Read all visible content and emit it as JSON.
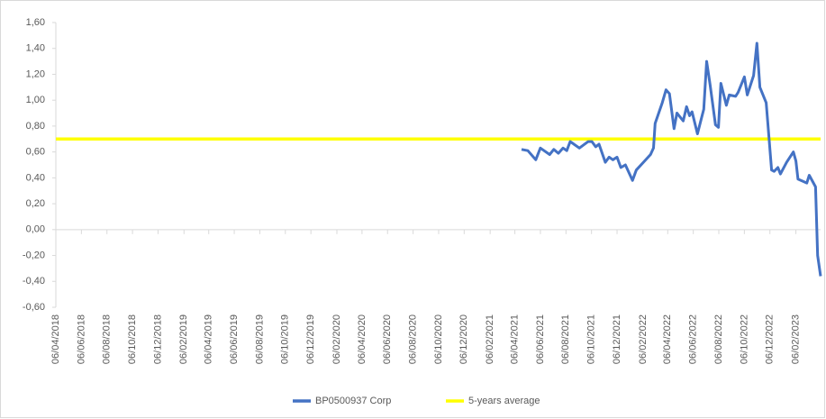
{
  "chart_data": {
    "type": "line",
    "xlim": [
      "06/04/2018",
      "06/04/2023"
    ],
    "xticks": [
      "06/04/2018",
      "06/06/2018",
      "06/08/2018",
      "06/10/2018",
      "06/12/2018",
      "06/02/2019",
      "06/04/2019",
      "06/06/2019",
      "06/08/2019",
      "06/10/2019",
      "06/12/2019",
      "06/02/2020",
      "06/04/2020",
      "06/06/2020",
      "06/08/2020",
      "06/10/2020",
      "06/12/2020",
      "06/02/2021",
      "06/04/2021",
      "06/06/2021",
      "06/08/2021",
      "06/10/2021",
      "06/12/2021",
      "06/02/2022",
      "06/04/2022",
      "06/06/2022",
      "06/08/2022",
      "06/10/2022",
      "06/12/2022",
      "06/02/2023"
    ],
    "ylim": [
      -0.6,
      1.6
    ],
    "yticks": [
      {
        "value": 1.6,
        "label": "1,60"
      },
      {
        "value": 1.4,
        "label": "1,40"
      },
      {
        "value": 1.2,
        "label": "1,20"
      },
      {
        "value": 1.0,
        "label": "1,00"
      },
      {
        "value": 0.8,
        "label": "0,80"
      },
      {
        "value": 0.6,
        "label": "0,60"
      },
      {
        "value": 0.4,
        "label": "0,40"
      },
      {
        "value": 0.2,
        "label": "0,20"
      },
      {
        "value": 0,
        "label": "0,00"
      },
      {
        "value": -0.2,
        "label": "-0,20"
      },
      {
        "value": -0.4,
        "label": "-0,40"
      },
      {
        "value": -0.6,
        "label": "-0,60"
      }
    ],
    "legend": "bottom",
    "series": [
      {
        "name": "BP0500937 Corp",
        "color": "#4472c4",
        "x": [
          "22/04/2021",
          "07/05/2021",
          "26/05/2021",
          "06/06/2021",
          "28/06/2021",
          "08/07/2021",
          "19/07/2021",
          "30/07/2021",
          "08/08/2021",
          "16/08/2021",
          "07/09/2021",
          "28/09/2021",
          "07/10/2021",
          "16/10/2021",
          "24/10/2021",
          "08/11/2021",
          "17/11/2021",
          "26/11/2021",
          "06/12/2021",
          "15/12/2021",
          "26/12/2021",
          "12/01/2022",
          "21/01/2022",
          "07/02/2022",
          "24/02/2022",
          "03/03/2022",
          "07/03/2022",
          "24/03/2022",
          "02/04/2022",
          "10/04/2022",
          "21/04/2022",
          "28/04/2022",
          "13/05/2022",
          "21/05/2022",
          "28/05/2022",
          "03/06/2022",
          "16/06/2022",
          "01/07/2022",
          "08/07/2022",
          "16/07/2022",
          "29/07/2022",
          "05/08/2022",
          "11/08/2022",
          "24/08/2022",
          "31/08/2022",
          "15/09/2022",
          "21/09/2022",
          "06/10/2022",
          "13/10/2022",
          "28/10/2022",
          "05/11/2022",
          "12/11/2022",
          "27/11/2022",
          "10/12/2022",
          "16/12/2022",
          "25/12/2022",
          "31/12/2022",
          "15/01/2023",
          "31/01/2023",
          "06/02/2023",
          "11/02/2023",
          "04/03/2023",
          "10/03/2023",
          "25/03/2023",
          "30/03/2023",
          "06/04/2023"
        ],
        "values": [
          0.62,
          0.61,
          0.54,
          0.63,
          0.58,
          0.62,
          0.59,
          0.63,
          0.61,
          0.68,
          0.63,
          0.68,
          0.68,
          0.64,
          0.66,
          0.52,
          0.56,
          0.54,
          0.56,
          0.48,
          0.5,
          0.38,
          0.46,
          0.52,
          0.58,
          0.63,
          0.82,
          0.98,
          1.08,
          1.05,
          0.78,
          0.9,
          0.84,
          0.95,
          0.88,
          0.91,
          0.74,
          0.93,
          1.3,
          1.12,
          0.81,
          0.79,
          1.13,
          0.96,
          1.04,
          1.03,
          1.06,
          1.18,
          1.04,
          1.19,
          1.44,
          1.1,
          0.98,
          0.46,
          0.45,
          0.48,
          0.43,
          0.52,
          0.6,
          0.53,
          0.39,
          0.36,
          0.42,
          0.33,
          -0.2,
          -0.36
        ]
      },
      {
        "name": "5-years average",
        "color": "#ffff00",
        "x": [
          "06/04/2018",
          "06/04/2023"
        ],
        "values": [
          0.7,
          0.7
        ]
      }
    ]
  }
}
